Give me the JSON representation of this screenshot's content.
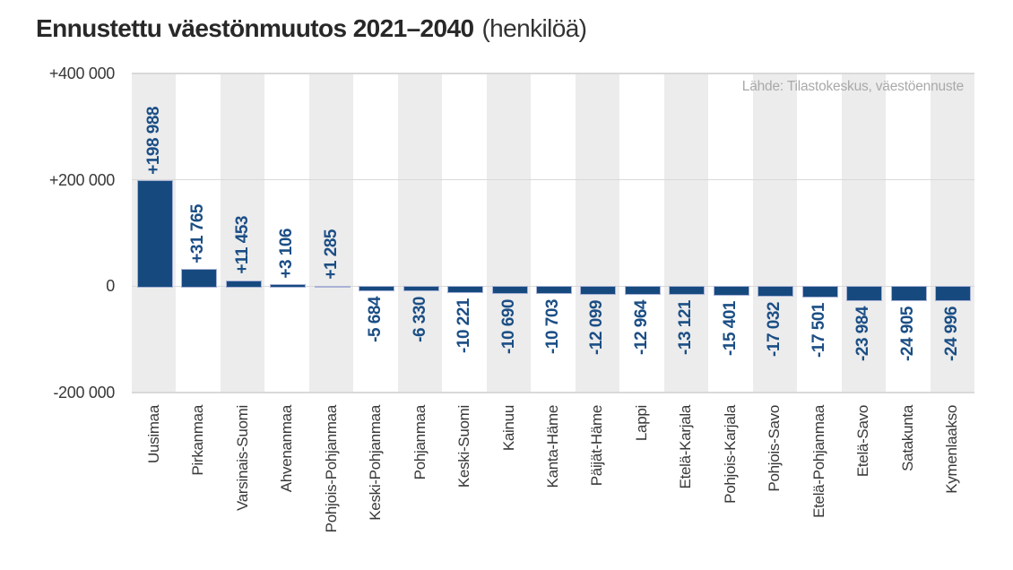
{
  "title": {
    "main": "Ennustettu väestönmuutos 2021–2040",
    "suffix": "(henkilöä)"
  },
  "source": "Lähde: Tilastokeskus, väestöennuste",
  "colors": {
    "bar": "#164a7f",
    "bar_border": "#a9b2d6",
    "value_label": "#1b4e85",
    "stripe": "#ececec",
    "gridline": "#d9d9d9",
    "axis_text": "#383838",
    "source_text": "#a9a9a9"
  },
  "chart_data": {
    "type": "bar",
    "title": "Ennustettu väestönmuutos 2021–2040 (henkilöä)",
    "source": "Lähde: Tilastokeskus, väestöennuste",
    "xlabel": "",
    "ylabel": "",
    "ylim": [
      -200000,
      400000
    ],
    "grid": true,
    "legend": false,
    "categories": [
      "Uusimaa",
      "Pirkanmaa",
      "Varsinais-Suomi",
      "Ahvenanmaa",
      "Pohjois-Pohjanmaa",
      "Keski-Pohjanmaa",
      "Pohjanmaa",
      "Keski-Suomi",
      "Kainuu",
      "Kanta-Häme",
      "Päijät-Häme",
      "Lappi",
      "Etelä-Karjala",
      "Pohjois-Karjala",
      "Pohjois-Savo",
      "Etelä-Pohjanmaa",
      "Etelä-Savo",
      "Satakunta",
      "Kymenlaakso"
    ],
    "values": [
      198988,
      31765,
      11453,
      3106,
      1285,
      -5684,
      -6330,
      -10221,
      -10690,
      -10703,
      -12099,
      -12964,
      -13121,
      -15401,
      -17032,
      -17501,
      -23984,
      -24905,
      -24996
    ],
    "labels": [
      "+198 988",
      "+31 765",
      "+11 453",
      "+3 106",
      "+1 285",
      "-5 684",
      "-6 330",
      "-10 221",
      "-10 690",
      "-10 703",
      "-12 099",
      "-12 964",
      "-13 121",
      "-15 401",
      "-17 032",
      "-17 501",
      "-23 984",
      "-24 905",
      "-24 996"
    ],
    "y_ticks": [
      {
        "label": "+400 000",
        "value": 400000
      },
      {
        "label": "+200 000",
        "value": 200000
      },
      {
        "label": "0",
        "value": 0
      },
      {
        "label": "-200 000",
        "value": -200000
      }
    ]
  }
}
